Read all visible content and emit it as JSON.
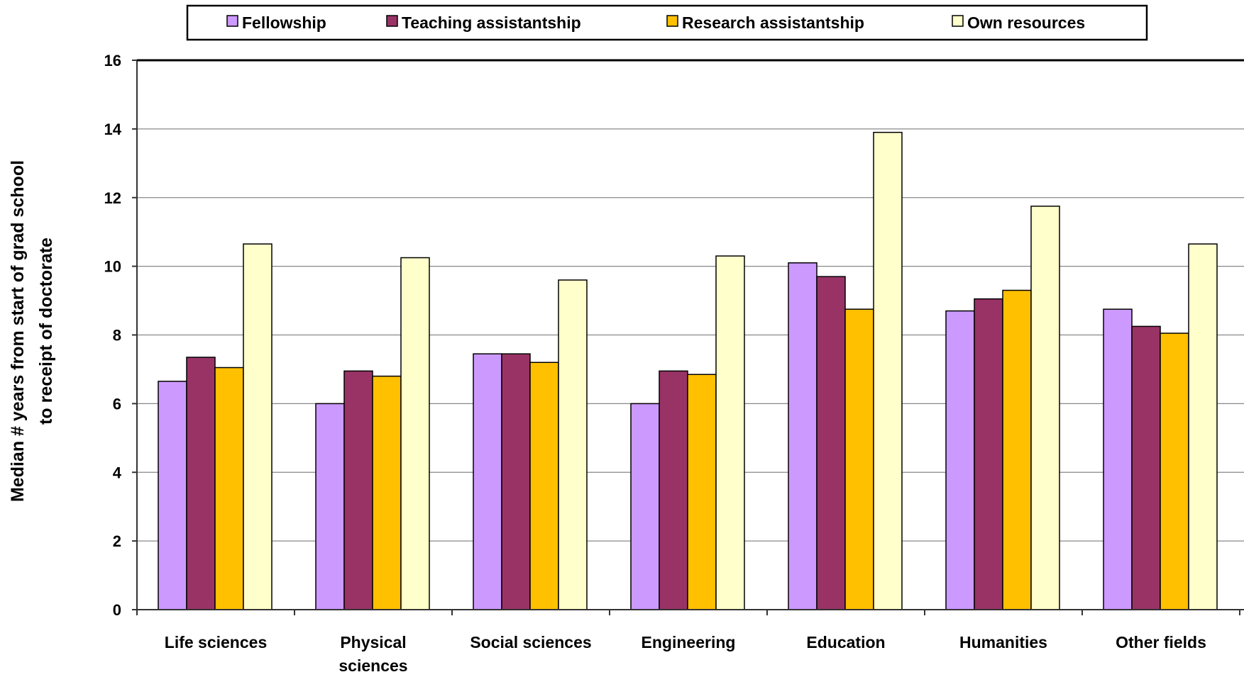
{
  "chart_data": {
    "type": "bar",
    "title": "",
    "xlabel": "",
    "ylabel": [
      "Median # years from start of grad school",
      "to receipt of doctorate"
    ],
    "ylim": [
      0,
      16
    ],
    "yticks": [
      0,
      2,
      4,
      6,
      8,
      10,
      12,
      14,
      16
    ],
    "grid": true,
    "legend_position": "top",
    "categories": [
      [
        "Life sciences"
      ],
      [
        "Physical",
        "sciences"
      ],
      [
        "Social sciences"
      ],
      [
        "Engineering"
      ],
      [
        "Education"
      ],
      [
        "Humanities"
      ],
      [
        "Other fields"
      ]
    ],
    "series": [
      {
        "name": "Fellowship",
        "color": "#cc99ff",
        "values": [
          6.65,
          6.0,
          7.45,
          6.0,
          10.1,
          8.7,
          8.75
        ]
      },
      {
        "name": "Teaching assistantship",
        "color": "#993366",
        "values": [
          7.35,
          6.95,
          7.45,
          6.95,
          9.7,
          9.05,
          8.25
        ]
      },
      {
        "name": "Research assistantship",
        "color": "#ffc000",
        "values": [
          7.05,
          6.8,
          7.2,
          6.85,
          8.75,
          9.3,
          8.05
        ]
      },
      {
        "name": "Own resources",
        "color": "#ffffcc",
        "values": [
          10.65,
          10.25,
          9.6,
          10.3,
          13.9,
          11.75,
          10.65
        ]
      }
    ]
  }
}
